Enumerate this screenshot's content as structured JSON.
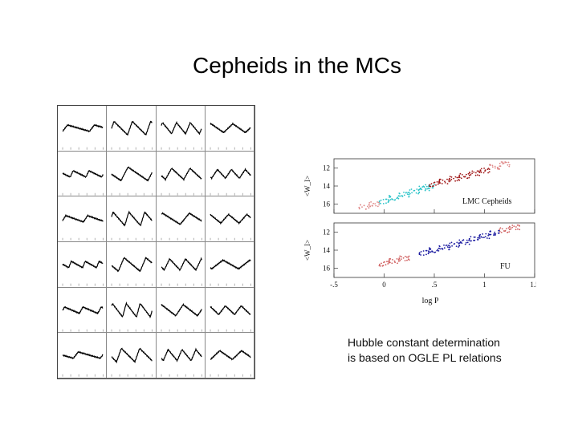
{
  "slide": {
    "title": "Cepheids in the MCs",
    "caption_lines": [
      "Hubble constant determination",
      "is based on OGLE PL relations"
    ]
  },
  "light_curve_grid": {
    "rows": 6,
    "cols": 4,
    "curve_color": "#000000",
    "note": "24 Cepheid light-curve panels (saw-tooth variations); panel labels illegible"
  },
  "chart_data": [
    {
      "type": "scatter",
      "panel": "top",
      "title": "",
      "label": "LMC Cepheids",
      "ylabel": "<W_I>",
      "xlabel": "",
      "xlim": [
        -0.5,
        1.5
      ],
      "ylim": [
        17,
        11
      ],
      "yticks": [
        "12",
        "14",
        "16"
      ],
      "xticks": [
        "-.5",
        "0",
        ".5",
        "1",
        "1.5"
      ],
      "series": [
        {
          "color": "#2ac3c8",
          "points": [
            [
              0.0,
              15.7
            ],
            [
              0.1,
              15.3
            ],
            [
              0.2,
              14.95
            ],
            [
              0.3,
              14.6
            ],
            [
              0.4,
              14.25
            ],
            [
              0.45,
              14.1
            ]
          ]
        },
        {
          "color": "#a01818",
          "points": [
            [
              0.5,
              13.8
            ],
            [
              0.6,
              13.5
            ],
            [
              0.7,
              13.2
            ],
            [
              0.8,
              12.9
            ],
            [
              0.9,
              12.6
            ],
            [
              1.0,
              12.3
            ]
          ]
        },
        {
          "color": "#e08a8a",
          "points": [
            [
              1.1,
              11.9
            ],
            [
              1.2,
              11.6
            ],
            [
              -0.2,
              16.3
            ],
            [
              -0.1,
              16.0
            ]
          ]
        }
      ]
    },
    {
      "type": "scatter",
      "panel": "bottom",
      "label": "FU",
      "ylabel": "<W_I>",
      "xlabel": "log P",
      "xlim": [
        -0.5,
        1.5
      ],
      "ylim": [
        17,
        11
      ],
      "yticks": [
        "12",
        "14",
        "16"
      ],
      "xticks": [
        "-.5",
        "0",
        ".5",
        "1",
        "1.5"
      ],
      "series": [
        {
          "color": "#1a1aa0",
          "points": [
            [
              0.4,
              14.3
            ],
            [
              0.5,
              14.0
            ],
            [
              0.6,
              13.7
            ],
            [
              0.7,
              13.4
            ],
            [
              0.8,
              13.1
            ],
            [
              0.9,
              12.75
            ],
            [
              1.0,
              12.45
            ],
            [
              1.1,
              12.1
            ]
          ]
        },
        {
          "color": "#d06060",
          "points": [
            [
              0.0,
              15.5
            ],
            [
              0.1,
              15.2
            ],
            [
              0.2,
              14.9
            ],
            [
              1.2,
              11.8
            ],
            [
              1.3,
              11.5
            ]
          ]
        }
      ]
    }
  ]
}
